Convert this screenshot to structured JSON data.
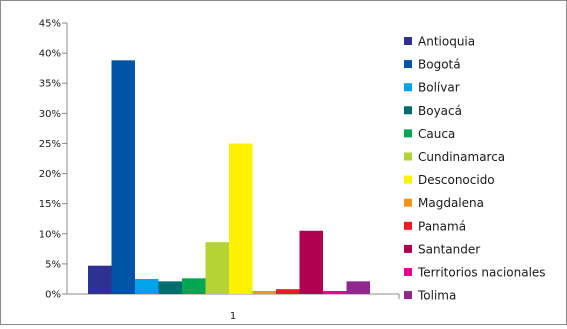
{
  "chart_data": {
    "type": "bar",
    "categories": [
      "1"
    ],
    "series": [
      {
        "name": "Antioquia",
        "values": [
          4.7
        ],
        "color": "#2e3192"
      },
      {
        "name": "Bogotá",
        "values": [
          38.8
        ],
        "color": "#0054a6"
      },
      {
        "name": "Bolívar",
        "values": [
          2.5
        ],
        "color": "#00a2e8"
      },
      {
        "name": "Boyacá",
        "values": [
          2.1
        ],
        "color": "#006e6e"
      },
      {
        "name": "Cauca",
        "values": [
          2.6
        ],
        "color": "#00a651"
      },
      {
        "name": "Cundinamarca",
        "values": [
          8.6
        ],
        "color": "#b5d334"
      },
      {
        "name": "Desconocido",
        "values": [
          25.0
        ],
        "color": "#fff200"
      },
      {
        "name": "Magdalena",
        "values": [
          0.5
        ],
        "color": "#f7941d"
      },
      {
        "name": "Panamá",
        "values": [
          0.8
        ],
        "color": "#ed1c24"
      },
      {
        "name": "Santander",
        "values": [
          10.5
        ],
        "color": "#b0004f"
      },
      {
        "name": "Territorios nacionales",
        "values": [
          0.5
        ],
        "color": "#ec008c"
      },
      {
        "name": "Tolima",
        "values": [
          2.1
        ],
        "color": "#92278f"
      }
    ],
    "y_ticks": [
      "0%",
      "5%",
      "10%",
      "15%",
      "20%",
      "25%",
      "30%",
      "35%",
      "40%",
      "45%"
    ],
    "ylim": [
      0,
      45
    ],
    "grid": false,
    "legend_position": "right"
  }
}
